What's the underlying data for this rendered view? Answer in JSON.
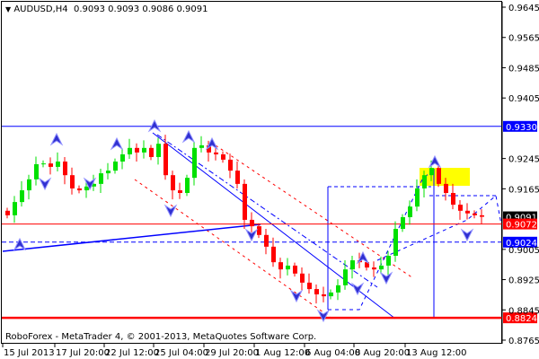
{
  "header": {
    "symbol": "AUDUSD,H4",
    "ohlc": "0.9093 0.9093 0.9086 0.9091",
    "menu_icon": "triangle-down-icon"
  },
  "footer": {
    "copyright": "RoboForex - MetaTrader 4, © 2001-2013, MetaQuotes Software Corp."
  },
  "colors": {
    "bull": "#00e000",
    "bear": "#ff0000",
    "level_blue": "#0000ff",
    "level_red": "#ff0000",
    "target_zone": "#ffff00"
  },
  "chart_data": {
    "type": "candlestick",
    "ylim": [
      0.8765,
      0.9645
    ],
    "y_ticks": [
      "0.9645",
      "0.9565",
      "0.9485",
      "0.9405",
      "0.9245",
      "0.9165",
      "0.9005",
      "0.8925",
      "0.8845",
      "0.8765"
    ],
    "x_ticks": [
      "15 Jul 2013",
      "17 Jul 20:00",
      "22 Jul 12:00",
      "25 Jul 04:00",
      "29 Jul 20:00",
      "1 Aug 12:00",
      "6 Aug 04:00",
      "8 Aug 20:00",
      "13 Aug 12:00"
    ],
    "levels": [
      {
        "price": "0.9330",
        "color": "#0000ff",
        "style": "solid"
      },
      {
        "price": "0.9091",
        "color": "#000000",
        "style": "current"
      },
      {
        "price": "0.9072",
        "color": "#ff0000",
        "style": "solid"
      },
      {
        "price": "0.9024",
        "color": "#0000ff",
        "style": "dashed"
      },
      {
        "price": "0.8824",
        "color": "#ff0000",
        "style": "thick"
      }
    ],
    "closes": [
      0.9095,
      0.913,
      0.9161,
      0.919,
      0.923,
      0.9232,
      0.9223,
      0.9237,
      0.9201,
      0.9166,
      0.9161,
      0.9171,
      0.9178,
      0.9206,
      0.9213,
      0.9237,
      0.9256,
      0.9273,
      0.9261,
      0.9273,
      0.9249,
      0.9284,
      0.9201,
      0.9161,
      0.9154,
      0.9194,
      0.9273,
      0.928,
      0.9261,
      0.9256,
      0.9242,
      0.9213,
      0.9178,
      0.9083,
      0.9066,
      0.9043,
      0.9012,
      0.8971,
      0.8952,
      0.8962,
      0.8941,
      0.8917,
      0.89,
      0.8886,
      0.8881,
      0.8891,
      0.891,
      0.8952,
      0.8976,
      0.8971,
      0.8957,
      0.8952,
      0.8962,
      0.8988,
      0.9059,
      0.909,
      0.9118,
      0.9166,
      0.9201,
      0.922,
      0.9178,
      0.9154,
      0.9123,
      0.9107,
      0.91,
      0.9095,
      0.9091
    ]
  }
}
